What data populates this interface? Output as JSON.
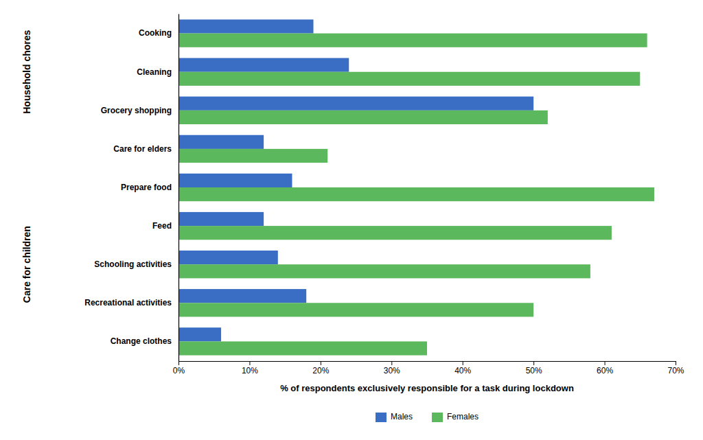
{
  "chart_data": {
    "type": "bar",
    "orientation": "horizontal",
    "categories": [
      "Cooking",
      "Cleaning",
      "Grocery shopping",
      "Care for elders",
      "Prepare food",
      "Feed",
      "Schooling activities",
      "Recreational activities",
      "Change clothes"
    ],
    "series": [
      {
        "name": "Males",
        "color": "#3A6EC4",
        "values": [
          19,
          24,
          50,
          12,
          16,
          12,
          14,
          18,
          6
        ]
      },
      {
        "name": "Females",
        "color": "#5CB85C",
        "values": [
          66,
          65,
          52,
          21,
          67,
          61,
          58,
          50,
          35
        ]
      }
    ],
    "xlabel": "% of respondents exclusively responsible for a task during lockdown",
    "annotations": [
      {
        "text": "Household chores",
        "categories": [
          "Cooking",
          "Cleaning",
          "Grocery shopping"
        ]
      },
      {
        "text": "Care for children",
        "categories": [
          "Prepare food",
          "Feed",
          "Schooling activities",
          "Recreational activities",
          "Change clothes"
        ]
      }
    ],
    "xlim": [
      0,
      70
    ],
    "xticks": [
      {
        "value": 0,
        "label": "0%"
      },
      {
        "value": 10,
        "label": "10%"
      },
      {
        "value": 20,
        "label": "20%"
      },
      {
        "value": 30,
        "label": "30%"
      },
      {
        "value": 40,
        "label": "40%"
      },
      {
        "value": 50,
        "label": "50%"
      },
      {
        "value": 60,
        "label": "60%"
      },
      {
        "value": 70,
        "label": "70%"
      }
    ],
    "grid": false,
    "legend": "bottom"
  }
}
